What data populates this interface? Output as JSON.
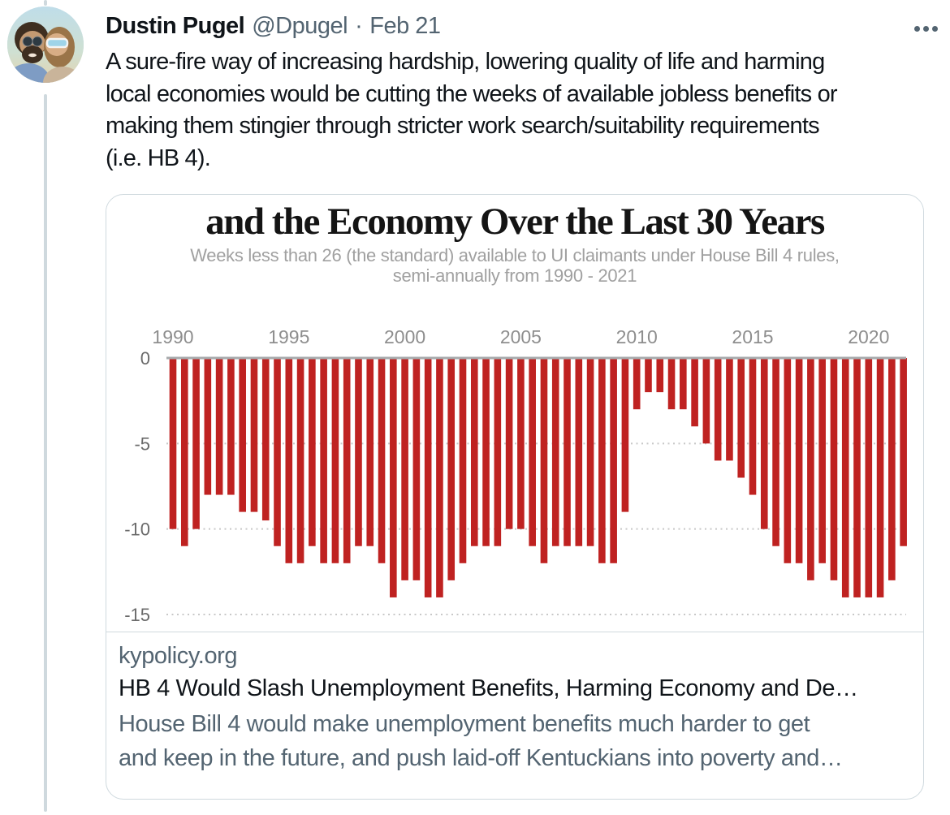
{
  "tweet": {
    "author_name": "Dustin Pugel",
    "handle": "@Dpugel",
    "separator": "·",
    "date": "Feb 21",
    "body_lines": [
      "A sure-fire way of increasing hardship, lowering quality of life and harming",
      "local economies would be cutting the weeks of available jobless benefits or",
      "making them stingier through stricter work search/suitability requirements",
      "(i.e. HB 4)."
    ]
  },
  "link_card": {
    "domain": "kypolicy.org",
    "title": "HB 4 Would Slash Unemployment Benefits, Harming Economy and De…",
    "description_lines": [
      "House Bill 4 would make unemployment benefits much harder to get",
      "and keep in the future, and push laid-off Kentuckians into poverty and…"
    ]
  },
  "chart_data": {
    "type": "bar",
    "title": "and the Economy Over the Last 30 Years",
    "subtitle_lines": [
      "Weeks less than 26 (the standard) available to UI claimants under House Bill 4 rules,",
      "semi-annually from 1990 - 2021"
    ],
    "categories": [
      "1990-H1",
      "1990-H2",
      "1991-H1",
      "1991-H2",
      "1992-H1",
      "1992-H2",
      "1993-H1",
      "1993-H2",
      "1994-H1",
      "1994-H2",
      "1995-H1",
      "1995-H2",
      "1996-H1",
      "1996-H2",
      "1997-H1",
      "1997-H2",
      "1998-H1",
      "1998-H2",
      "1999-H1",
      "1999-H2",
      "2000-H1",
      "2000-H2",
      "2001-H1",
      "2001-H2",
      "2002-H1",
      "2002-H2",
      "2003-H1",
      "2003-H2",
      "2004-H1",
      "2004-H2",
      "2005-H1",
      "2005-H2",
      "2006-H1",
      "2006-H2",
      "2007-H1",
      "2007-H2",
      "2008-H1",
      "2008-H2",
      "2009-H1",
      "2009-H2",
      "2010-H1",
      "2010-H2",
      "2011-H1",
      "2011-H2",
      "2012-H1",
      "2012-H2",
      "2013-H1",
      "2013-H2",
      "2014-H1",
      "2014-H2",
      "2015-H1",
      "2015-H2",
      "2016-H1",
      "2016-H2",
      "2017-H1",
      "2017-H2",
      "2018-H1",
      "2018-H2",
      "2019-H1",
      "2019-H2",
      "2020-H1",
      "2020-H2",
      "2021-H1",
      "2021-H2"
    ],
    "values": [
      -10,
      -11,
      -10,
      -8,
      -8,
      -8,
      -9,
      -9,
      -9.5,
      -11,
      -12,
      -12,
      -11,
      -12,
      -12,
      -12,
      -11,
      -11,
      -12,
      -14,
      -13,
      -13,
      -14,
      -14,
      -13,
      -12,
      -11,
      -11,
      -11,
      -10,
      -10,
      -11,
      -12,
      -11,
      -11,
      -11,
      -11,
      -12,
      -12,
      -9,
      -3,
      -2,
      -2,
      -3,
      -3,
      -4,
      -5,
      -6,
      -6,
      -7,
      -8,
      -10,
      -11,
      -12,
      -12,
      -13,
      -12,
      -13,
      -14,
      -14,
      -14,
      -14,
      -13,
      -11
    ],
    "x_tick_labels": [
      "1990",
      "1995",
      "2000",
      "2005",
      "2010",
      "2015",
      "2020"
    ],
    "y_tick_labels": [
      "0",
      "-5",
      "-10",
      "-15"
    ],
    "ylim": [
      -15,
      0
    ],
    "xlabel": "",
    "ylabel": "",
    "grid": "dotted horizontal gridlines at -5, -10, -15; solid axis at 0 (top)",
    "legend": "none",
    "bar_color": "#bf2221",
    "axis_color": "#a7aaac",
    "grid_color": "#c8c8c8",
    "x_tick_color": "#8e8e8e",
    "y_tick_color": "#6b6b6b"
  },
  "colors": {
    "text_primary": "#0f1419",
    "text_secondary": "#536471",
    "border": "#cfd9de",
    "bar_red": "#bf2221"
  },
  "icons": {
    "more": "more-options-ellipsis"
  }
}
